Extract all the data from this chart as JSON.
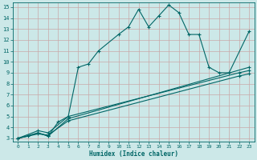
{
  "xlabel": "Humidex (Indice chaleur)",
  "bg_color": "#cce8e8",
  "line_color": "#006666",
  "grid_color": "#b8d8d8",
  "xlim": [
    -0.5,
    23.5
  ],
  "ylim": [
    2.7,
    15.4
  ],
  "xticks": [
    0,
    1,
    2,
    3,
    4,
    5,
    6,
    7,
    8,
    9,
    10,
    11,
    12,
    13,
    14,
    15,
    16,
    17,
    18,
    19,
    20,
    21,
    22,
    23
  ],
  "yticks": [
    3,
    4,
    5,
    6,
    7,
    8,
    9,
    10,
    11,
    12,
    13,
    14,
    15
  ],
  "curve1_x": [
    0,
    1,
    2,
    3,
    4,
    5,
    6,
    7,
    8,
    10,
    11,
    12,
    13,
    14,
    15,
    16,
    17,
    18,
    19,
    20,
    21,
    23
  ],
  "curve1_y": [
    3.0,
    3.2,
    3.5,
    3.2,
    4.5,
    5.0,
    9.5,
    9.8,
    11.0,
    12.5,
    13.2,
    14.8,
    13.2,
    14.2,
    15.2,
    14.5,
    12.5,
    12.5,
    9.5,
    9.0,
    9.0,
    12.8
  ],
  "curve2_x": [
    0,
    2,
    3,
    5,
    23
  ],
  "curve2_y": [
    3.0,
    3.5,
    3.2,
    4.8,
    9.5
  ],
  "curve3_x": [
    0,
    2,
    3,
    5,
    22,
    23
  ],
  "curve3_y": [
    3.0,
    3.7,
    3.5,
    5.0,
    9.0,
    9.2
  ],
  "curve4_x": [
    0,
    2,
    3,
    5,
    22,
    23
  ],
  "curve4_y": [
    3.0,
    3.4,
    3.3,
    4.6,
    8.7,
    8.9
  ]
}
